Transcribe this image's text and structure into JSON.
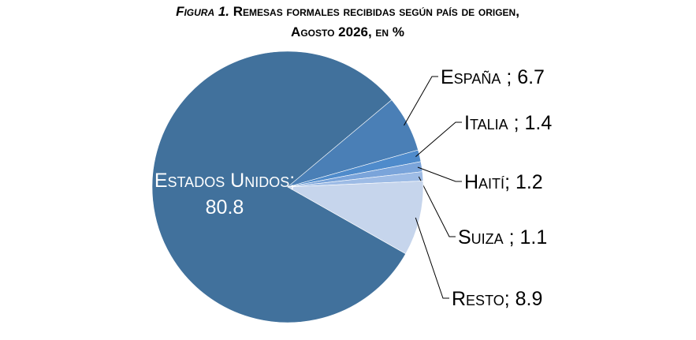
{
  "chart_data": {
    "type": "pie",
    "figure_label": "Figura 1.",
    "title": [
      "Remesas formales recibidas según país de origen,",
      "Agosto 2026, en %"
    ],
    "categories": [
      "Estados Unidos",
      "España",
      "Italia",
      "Haití",
      "Suiza",
      "Resto"
    ],
    "values": [
      80.8,
      6.7,
      1.4,
      1.2,
      1.1,
      8.9
    ],
    "value_labels": [
      "; 80.8",
      " ; 6.7",
      " ; 1.4",
      "; 1.2",
      " ; 1.1",
      "; 8.9"
    ],
    "colors": [
      "#41719c",
      "#4a7fb6",
      "#4f8bcb",
      "#7aa4da",
      "#9dbbe5",
      "#c6d5ec"
    ]
  }
}
